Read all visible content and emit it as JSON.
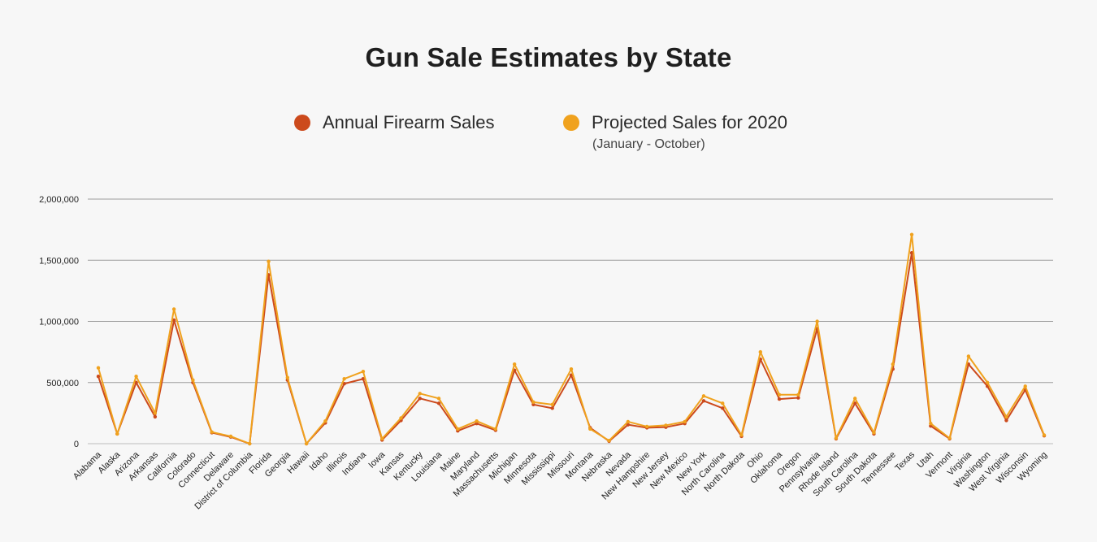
{
  "chart_data": {
    "type": "line",
    "title": "Gun Sale Estimates by State",
    "legend_position": "top",
    "grid": true,
    "ylim": [
      0,
      2000000
    ],
    "yticks": [
      0,
      500000,
      1000000,
      1500000,
      2000000
    ],
    "ytick_labels": [
      "0",
      "500,000",
      "1,000,000",
      "1,500,000",
      "2,000,000"
    ],
    "categories": [
      "Alabama",
      "Alaska",
      "Arizona",
      "Arkansas",
      "California",
      "Colorado",
      "Connecticut",
      "Delaware",
      "District of Columbia",
      "Florida",
      "Georgia",
      "Hawaii",
      "Idaho",
      "Illinois",
      "Indiana",
      "Iowa",
      "Kansas",
      "Kentucky",
      "Louisiana",
      "Maine",
      "Maryland",
      "Massachusetts",
      "Michigan",
      "Minnesota",
      "Mississippi",
      "Missouri",
      "Montana",
      "Nebraska",
      "Nevada",
      "New Hampshire",
      "New Jersey",
      "New Mexico",
      "New York",
      "North Carolina",
      "North Dakota",
      "Ohio",
      "Oklahoma",
      "Oregon",
      "Pennsylvania",
      "Rhode Island",
      "South Carolina",
      "South Dakota",
      "Tennessee",
      "Texas",
      "Utah",
      "Vermont",
      "Virginia",
      "Washington",
      "West Virginia",
      "Wisconsin",
      "Wyoming"
    ],
    "series": [
      {
        "name": "Annual Firearm Sales",
        "color": "#cc4a1c",
        "values": [
          550000,
          80000,
          500000,
          220000,
          1010000,
          500000,
          90000,
          55000,
          0,
          1380000,
          520000,
          0,
          170000,
          490000,
          530000,
          30000,
          190000,
          370000,
          330000,
          105000,
          165000,
          110000,
          600000,
          320000,
          290000,
          560000,
          130000,
          20000,
          155000,
          130000,
          135000,
          165000,
          350000,
          290000,
          60000,
          690000,
          365000,
          375000,
          940000,
          40000,
          330000,
          80000,
          610000,
          1560000,
          145000,
          40000,
          650000,
          470000,
          190000,
          440000,
          65000
        ]
      },
      {
        "name": "Projected Sales for 2020",
        "subtitle": "(January - October)",
        "color": "#f0a21e",
        "values": [
          620000,
          80000,
          550000,
          250000,
          1100000,
          520000,
          95000,
          60000,
          0,
          1490000,
          540000,
          0,
          185000,
          530000,
          590000,
          40000,
          210000,
          410000,
          370000,
          120000,
          185000,
          120000,
          650000,
          340000,
          320000,
          610000,
          120000,
          25000,
          180000,
          140000,
          150000,
          180000,
          390000,
          330000,
          70000,
          750000,
          400000,
          400000,
          1000000,
          45000,
          370000,
          90000,
          650000,
          1710000,
          165000,
          45000,
          715000,
          500000,
          220000,
          470000,
          70000
        ]
      }
    ]
  }
}
